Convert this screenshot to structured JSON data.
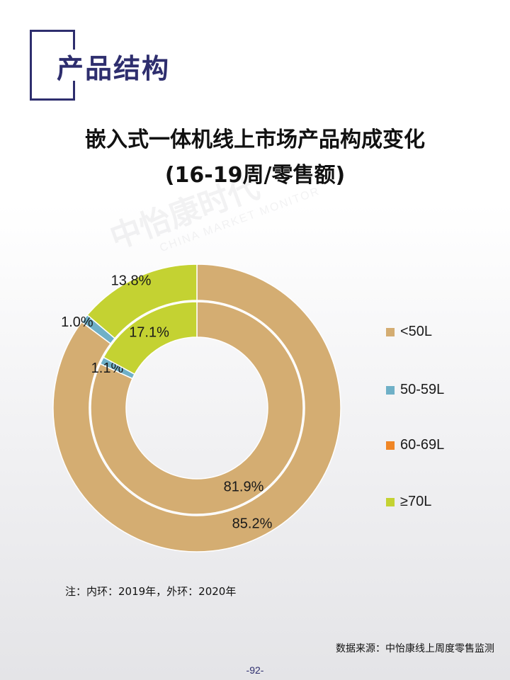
{
  "section": {
    "title": "产品结构"
  },
  "chart_data": {
    "type": "donut",
    "title": "嵌入式一体机线上市场产品构成变化",
    "subtitle": "(16-19周/零售额)",
    "legend_position": "right",
    "categories": [
      "<50L",
      "50-59L",
      "60-69L",
      "≥70L"
    ],
    "colors": [
      "#d4ad72",
      "#6fb0c7",
      "#f08626",
      "#c4d232"
    ],
    "series": [
      {
        "ring": "outer",
        "labels": [
          "85.2%",
          "1.0%",
          "",
          "13.8%"
        ],
        "values": [
          85.2,
          1.0,
          0.0,
          13.8
        ]
      },
      {
        "ring": "inner",
        "labels": [
          "81.9%",
          "1.1%",
          "",
          "17.1%"
        ],
        "values": [
          81.9,
          1.1,
          0.0,
          17.1
        ]
      }
    ]
  },
  "note": "注：内环：2019年，外环：2020年",
  "source": "数据来源：中怡康线上周度零售监测",
  "page_number": "-92-",
  "watermark": {
    "cn": "中怡康时代",
    "en": "CHINA MARKET MONITOR"
  }
}
